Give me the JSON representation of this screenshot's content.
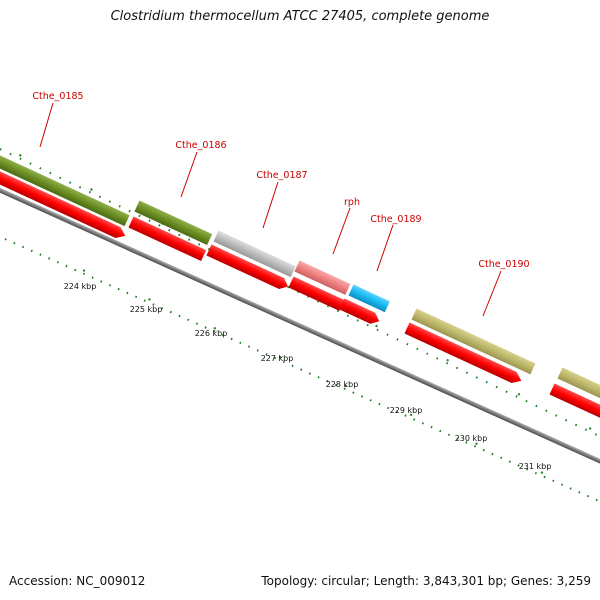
{
  "title": "Clostridium thermocellum ATCC 27405, complete genome",
  "footer": {
    "accession": "Accession: NC_009012",
    "summary": "Topology: circular; Length: 3,843,301 bp; Genes: 3,259"
  },
  "colors": {
    "cds": "#ff0000",
    "backbone": "#808080",
    "ticks": "#1f7a1f",
    "label": "#cc0000",
    "cog_olive_green": "#6b8e23",
    "cog_khaki": "#bdb76b",
    "cog_grey": "#bbbbbb",
    "cog_pink": "#f08080",
    "cog_blue": "#18b8f0"
  },
  "genes": [
    {
      "name": "Cthe_0185"
    },
    {
      "name": "Cthe_0186"
    },
    {
      "name": "Cthe_0187"
    },
    {
      "name": "rph"
    },
    {
      "name": "Cthe_0189"
    },
    {
      "name": "Cthe_0190"
    }
  ],
  "scale_labels": [
    "224 kbp",
    "225 kbp",
    "226 kbp",
    "227 kbp",
    "228 kbp",
    "229 kbp",
    "230 kbp",
    "231 kbp"
  ]
}
